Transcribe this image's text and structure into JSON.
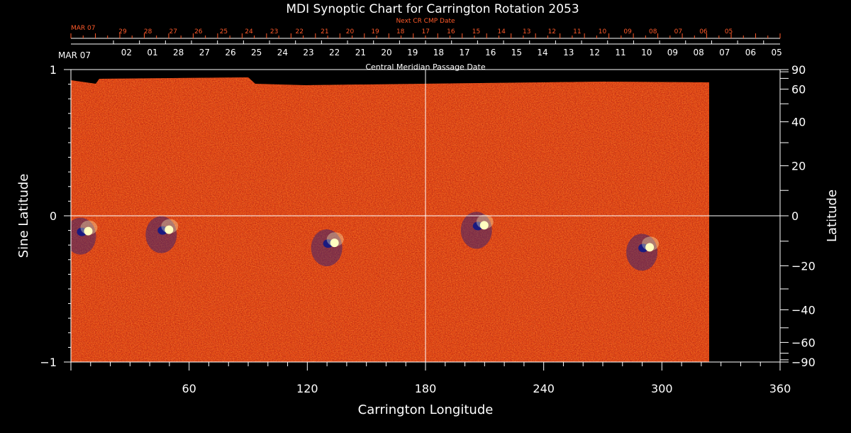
{
  "chart_data": {
    "type": "heatmap",
    "title": "MDI Synoptic Chart for Carrington Rotation 2053",
    "xlabel": "Carrington Longitude",
    "ylabel_left": "Sine Latitude",
    "ylabel_right": "Latitude",
    "xlim": [
      0,
      360
    ],
    "ylim": [
      -1,
      1
    ],
    "x_ticks": [
      "60",
      "120",
      "180",
      "240",
      "300",
      "360"
    ],
    "y_ticks_left": [
      "1",
      "0",
      "−1"
    ],
    "y_ticks_right": [
      "90",
      "60",
      "40",
      "20",
      "0",
      "−20",
      "−40",
      "−60",
      "−90"
    ],
    "y_ticks_right_deg": [
      90,
      60,
      40,
      20,
      0,
      -20,
      -40,
      -60,
      -90
    ],
    "data_extent_longitude": [
      0,
      324
    ],
    "top_axis_label": "Central Meridian Passage Date",
    "top_axis_start": "MAR 07",
    "top_axis_dates": [
      "02",
      "01",
      "28",
      "27",
      "26",
      "25",
      "24",
      "23",
      "22",
      "21",
      "20",
      "19",
      "18",
      "17",
      "16",
      "15",
      "14",
      "13",
      "12",
      "11",
      "10",
      "09",
      "08",
      "07",
      "06",
      "05"
    ],
    "next_cr_label": "Next CR CMP Date",
    "next_cr_start": "MAR 07",
    "next_cr_dates": [
      "29",
      "28",
      "27",
      "26",
      "25",
      "24",
      "23",
      "22",
      "21",
      "20",
      "19",
      "18",
      "17",
      "16",
      "15",
      "14",
      "13",
      "12",
      "11",
      "10",
      "09",
      "08",
      "07",
      "06",
      "05"
    ],
    "active_regions": [
      {
        "lon": 7,
        "sinlat": -0.11
      },
      {
        "lon": 48,
        "sinlat": -0.1
      },
      {
        "lon": 132,
        "sinlat": -0.19
      },
      {
        "lon": 208,
        "sinlat": -0.07
      },
      {
        "lon": 292,
        "sinlat": -0.22
      }
    ],
    "colors": {
      "field": "#e8501a",
      "positive": "#ffffc0",
      "negative": "#1a1a80",
      "background": "#000000",
      "next_cr": "#ff5a2a"
    }
  }
}
